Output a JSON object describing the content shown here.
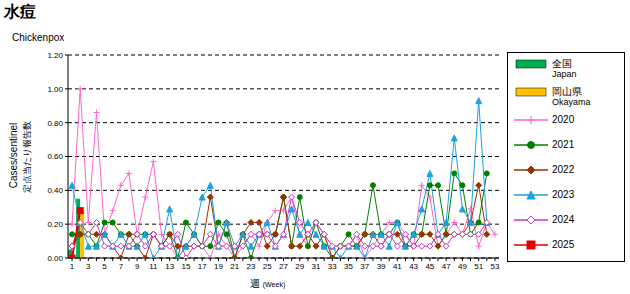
{
  "chart_data": {
    "type": "line",
    "title": "水痘",
    "subtitle": "Chickenpox",
    "x_label": "週 (Week)",
    "y_label": [
      "Cases/sentinel",
      "定点当たり報告数"
    ],
    "categories": [
      "1",
      null,
      "3",
      null,
      "5",
      null,
      "7",
      null,
      "9",
      null,
      "11",
      null,
      "13",
      null,
      "15",
      null,
      "17",
      null,
      "19",
      null,
      "21",
      null,
      "23",
      null,
      "25",
      null,
      "27",
      null,
      "29",
      null,
      "31",
      null,
      "33",
      null,
      "35",
      null,
      "37",
      null,
      "39",
      null,
      "41",
      null,
      "43",
      null,
      "45",
      null,
      "47",
      null,
      "49",
      null,
      "51",
      null,
      "53"
    ],
    "ylim": [
      0,
      1.2
    ],
    "yticks": [
      {
        "value": 0,
        "label": "0.00"
      },
      {
        "value": 0.2,
        "label": "0.20"
      },
      {
        "value": 0.4,
        "label": "0.40"
      },
      {
        "value": 0.6,
        "label": "0.60"
      },
      {
        "value": 0.8,
        "label": "0.80"
      },
      {
        "value": 1.0,
        "label": "1.00"
      },
      {
        "value": 1.2,
        "label": "1.20"
      }
    ],
    "grid": true,
    "series": [
      {
        "name": "全国 Japan",
        "type": "bar",
        "color": "#00b050",
        "values": [
          0.05,
          0.35,
          null,
          null,
          null,
          null,
          null,
          null,
          null,
          null,
          null,
          null,
          null,
          null,
          null,
          null,
          null,
          null,
          null,
          null,
          null,
          null,
          null,
          null,
          null,
          null,
          null,
          null,
          null,
          null,
          null,
          null,
          null,
          null,
          null,
          null,
          null,
          null,
          null,
          null,
          null,
          null,
          null,
          null,
          null,
          null,
          null,
          null,
          null,
          null,
          null,
          null,
          null
        ]
      },
      {
        "name": "岡山県 Okayama",
        "type": "bar",
        "color": "#ffc000",
        "values": [
          0,
          0.28,
          null,
          null,
          null,
          null,
          null,
          null,
          null,
          null,
          null,
          null,
          null,
          null,
          null,
          null,
          null,
          null,
          null,
          null,
          null,
          null,
          null,
          null,
          null,
          null,
          null,
          null,
          null,
          null,
          null,
          null,
          null,
          null,
          null,
          null,
          null,
          null,
          null,
          null,
          null,
          null,
          null,
          null,
          null,
          null,
          null,
          null,
          null,
          null,
          null,
          null,
          null
        ]
      },
      {
        "name": "2020",
        "type": "line",
        "marker": "plus",
        "color": "#ff66cc",
        "values": [
          0.2,
          1.0,
          0.21,
          0.86,
          0.14,
          0.28,
          0.43,
          0.5,
          0.14,
          0.36,
          0.57,
          0.14,
          0.07,
          0,
          0.07,
          0.14,
          0.07,
          0,
          0.14,
          0.07,
          0,
          0.07,
          0.14,
          0.07,
          0.21,
          0.28,
          0.28,
          0.36,
          0.14,
          0.07,
          0.21,
          0.14,
          0,
          0.07,
          0.07,
          0.14,
          0,
          0.07,
          0.14,
          0.21,
          0.21,
          0.14,
          0.07,
          0.43,
          0.36,
          0.07,
          0.14,
          0.21,
          0.14,
          0.29,
          0.07,
          0.21,
          0.14
        ]
      },
      {
        "name": "2021",
        "type": "line",
        "marker": "circle",
        "color": "#008000",
        "values": [
          0.14,
          0.14,
          0.14,
          0.07,
          0.21,
          0.21,
          0.14,
          0.14,
          0.14,
          0.14,
          0.14,
          0.07,
          0.14,
          0,
          0.21,
          0.14,
          0.07,
          0.07,
          0.21,
          0.14,
          0,
          0.14,
          0,
          0.14,
          0.14,
          0.14,
          0.36,
          0.07,
          0.36,
          0.07,
          0.21,
          0.07,
          0,
          0.07,
          0.14,
          0.07,
          0.14,
          0.43,
          0.14,
          0.14,
          0.21,
          0.07,
          0.14,
          0.14,
          0.43,
          0.43,
          0.14,
          0.5,
          0.43,
          0.14,
          0.21,
          0.5,
          null
        ]
      },
      {
        "name": "2022",
        "type": "line",
        "marker": "diamond",
        "color": "#993300",
        "values": [
          0.07,
          0.14,
          0.14,
          0.14,
          0.14,
          0.07,
          0,
          0.14,
          0.07,
          0,
          0.14,
          0.07,
          0.14,
          0.07,
          0.07,
          0.07,
          0.07,
          0.36,
          0.07,
          0.21,
          0,
          0.14,
          0.21,
          0.21,
          0.07,
          0.14,
          0.36,
          0.07,
          0.07,
          0.14,
          0.07,
          0.14,
          0,
          0.07,
          0.07,
          0.07,
          0.14,
          0.14,
          0.07,
          0.14,
          0.14,
          0.07,
          0.07,
          0.14,
          0.14,
          0.07,
          0.14,
          0.14,
          0.14,
          0.21,
          0.43,
          0.14,
          null
        ]
      },
      {
        "name": "2023",
        "type": "line",
        "marker": "triangle",
        "color": "#1ba1e2",
        "values": [
          0.43,
          0.21,
          0.07,
          0.07,
          0.14,
          0.07,
          0.14,
          0.07,
          0.07,
          0.14,
          0,
          0.07,
          0.29,
          0,
          0.07,
          0.14,
          0.36,
          0.43,
          0.07,
          0.21,
          0.07,
          0.14,
          0.07,
          0.14,
          0.21,
          0.07,
          0.14,
          0.29,
          0.14,
          0.21,
          0.14,
          0.07,
          0.07,
          0,
          0.07,
          0.07,
          0,
          0.14,
          0.14,
          0.07,
          0.21,
          0.07,
          0.14,
          0.29,
          0.5,
          0.14,
          0.21,
          0.71,
          0.29,
          0.21,
          0.93,
          0.21,
          null
        ]
      },
      {
        "name": "2024",
        "type": "line",
        "marker": "diamond",
        "color": "#cc33cc",
        "values": [
          0.07,
          0.21,
          0.14,
          0.21,
          0.07,
          0.07,
          0.07,
          0.07,
          0.14,
          0.07,
          0.14,
          0.07,
          0.07,
          0.14,
          0,
          0.07,
          0.07,
          0.14,
          0.07,
          0.07,
          0.07,
          0.07,
          0.14,
          0.14,
          0.14,
          0.07,
          0.14,
          0.36,
          0.21,
          0.14,
          0.21,
          0.14,
          0.07,
          0.07,
          0.07,
          0.14,
          0.07,
          0.07,
          0.07,
          0.14,
          0.07,
          0.14,
          0.07,
          0.07,
          0.07,
          0.14,
          0.07,
          0.14,
          0.14,
          0.14,
          0.14,
          0.21,
          null
        ]
      },
      {
        "name": "2025",
        "type": "line",
        "marker": "square",
        "color": "#e00000",
        "values": [
          0,
          0.28,
          null,
          null,
          null,
          null,
          null,
          null,
          null,
          null,
          null,
          null,
          null,
          null,
          null,
          null,
          null,
          null,
          null,
          null,
          null,
          null,
          null,
          null,
          null,
          null,
          null,
          null,
          null,
          null,
          null,
          null,
          null,
          null,
          null,
          null,
          null,
          null,
          null,
          null,
          null,
          null,
          null,
          null,
          null,
          null,
          null,
          null,
          null,
          null,
          null,
          null,
          null
        ]
      }
    ]
  }
}
